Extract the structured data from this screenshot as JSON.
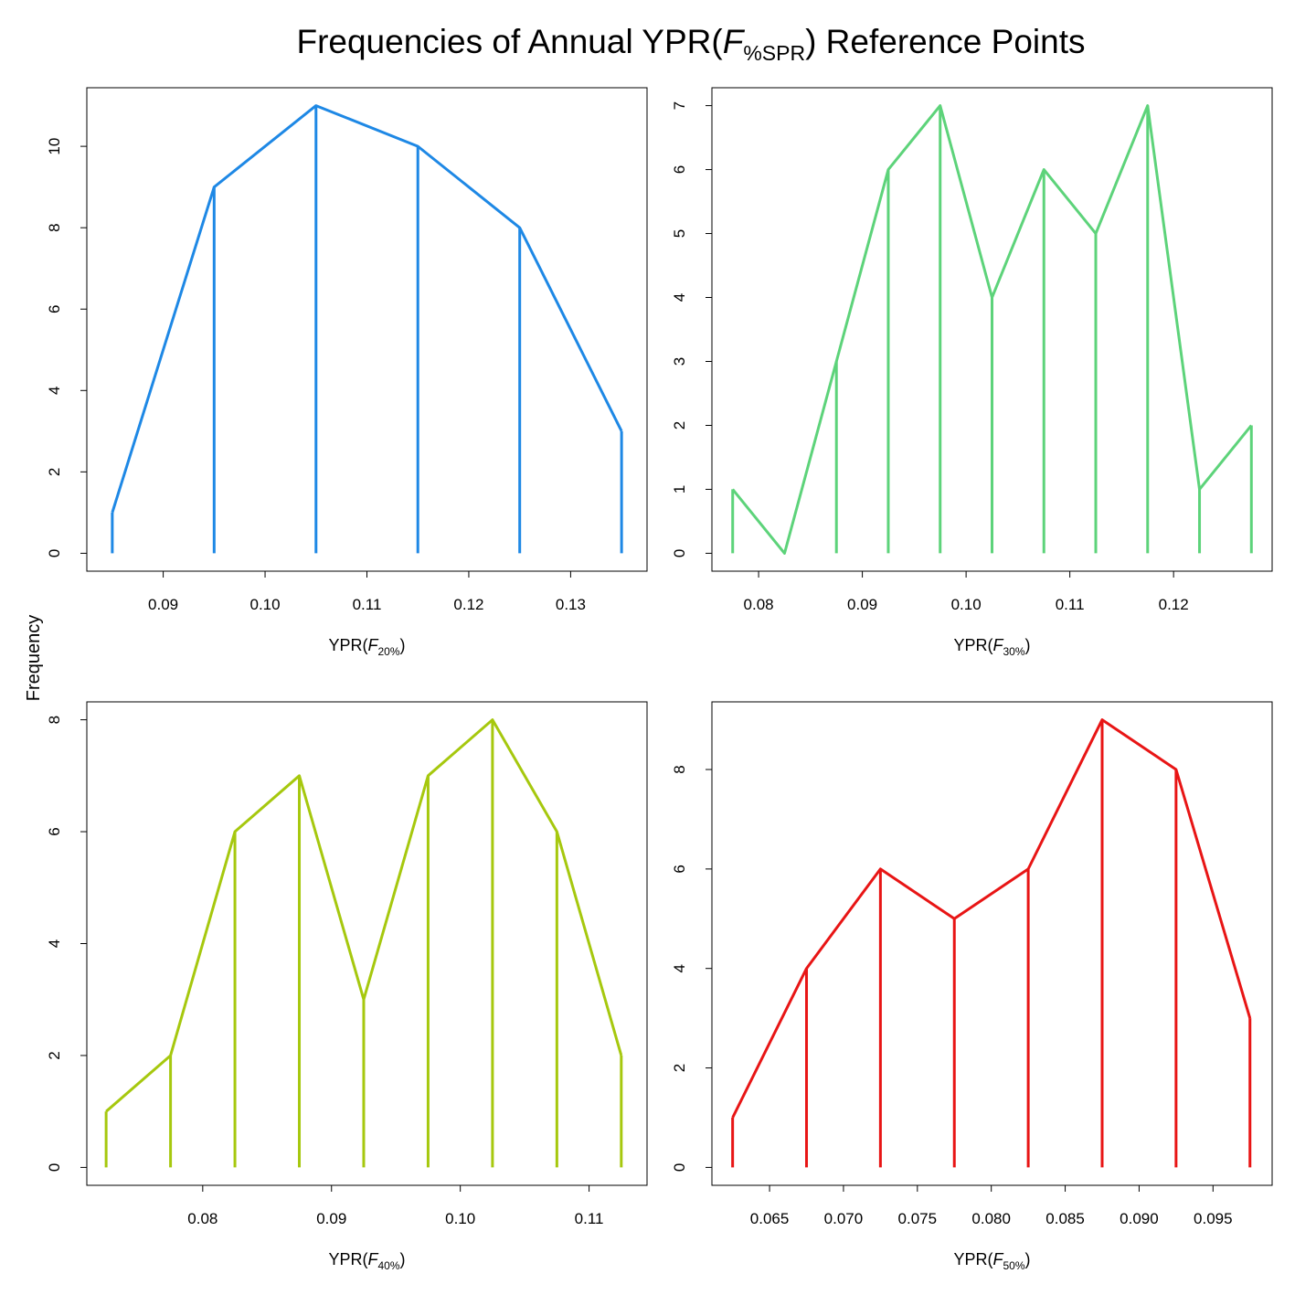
{
  "figure": {
    "title_prefix": "Frequencies of Annual YPR(",
    "title_italic": "F",
    "title_sub": "%SPR",
    "title_suffix": ") Reference Points",
    "ylabel": "Frequency"
  },
  "chart_data": [
    {
      "type": "line",
      "color": "#1E88E5",
      "xlabel_prefix": "YPR(",
      "xlabel_italic": "F",
      "xlabel_sub": "20%",
      "xlabel_suffix": ")",
      "xlim": [
        0.0825,
        0.1375
      ],
      "ylim": [
        -0.44,
        11.44
      ],
      "x_ticks": [
        0.09,
        0.1,
        0.11,
        0.12,
        0.13
      ],
      "x_tick_labels": [
        "0.09",
        "0.10",
        "0.11",
        "0.12",
        "0.13"
      ],
      "y_ticks": [
        0,
        2,
        4,
        6,
        8,
        10
      ],
      "y_tick_labels": [
        "0",
        "2",
        "4",
        "6",
        "8",
        "10"
      ],
      "x": [
        0.085,
        0.095,
        0.105,
        0.115,
        0.125,
        0.135
      ],
      "y": [
        1,
        9,
        11,
        10,
        8,
        3
      ]
    },
    {
      "type": "line",
      "color": "#5DD37A",
      "xlabel_prefix": "YPR(",
      "xlabel_italic": "F",
      "xlabel_sub": "30%",
      "xlabel_suffix": ")",
      "xlim": [
        0.0755,
        0.1295
      ],
      "ylim": [
        -0.28,
        7.28
      ],
      "x_ticks": [
        0.08,
        0.09,
        0.1,
        0.11,
        0.12
      ],
      "x_tick_labels": [
        "0.08",
        "0.09",
        "0.10",
        "0.11",
        "0.12"
      ],
      "y_ticks": [
        0,
        1,
        2,
        3,
        4,
        5,
        6,
        7
      ],
      "y_tick_labels": [
        "0",
        "1",
        "2",
        "3",
        "4",
        "5",
        "6",
        "7"
      ],
      "x": [
        0.0775,
        0.0825,
        0.0875,
        0.0925,
        0.0975,
        0.1025,
        0.1075,
        0.1125,
        0.1175,
        0.1225,
        0.1275
      ],
      "y": [
        1,
        0,
        3,
        6,
        7,
        4,
        6,
        5,
        7,
        1,
        2
      ]
    },
    {
      "type": "line",
      "color": "#A6C80E",
      "xlabel_prefix": "YPR(",
      "xlabel_italic": "F",
      "xlabel_sub": "40%",
      "xlabel_suffix": ")",
      "xlim": [
        0.071,
        0.1145
      ],
      "ylim": [
        -0.32,
        8.32
      ],
      "x_ticks": [
        0.08,
        0.09,
        0.1,
        0.11
      ],
      "x_tick_labels": [
        "0.08",
        "0.09",
        "0.10",
        "0.11"
      ],
      "y_ticks": [
        0,
        2,
        4,
        6,
        8
      ],
      "y_tick_labels": [
        "0",
        "2",
        "4",
        "6",
        "8"
      ],
      "x": [
        0.0725,
        0.0775,
        0.0825,
        0.0875,
        0.0925,
        0.0975,
        0.1025,
        0.1075,
        0.1125
      ],
      "y": [
        1,
        2,
        6,
        7,
        3,
        7,
        8,
        6,
        2
      ]
    },
    {
      "type": "line",
      "color": "#E81515",
      "xlabel_prefix": "YPR(",
      "xlabel_italic": "F",
      "xlabel_sub": "50%",
      "xlabel_suffix": ")",
      "xlim": [
        0.0611,
        0.099
      ],
      "ylim": [
        -0.36,
        9.36
      ],
      "x_ticks": [
        0.065,
        0.07,
        0.075,
        0.08,
        0.085,
        0.09,
        0.095
      ],
      "x_tick_labels": [
        "0.065",
        "0.070",
        "0.075",
        "0.080",
        "0.085",
        "0.090",
        "0.095"
      ],
      "y_ticks": [
        0,
        2,
        4,
        6,
        8
      ],
      "y_tick_labels": [
        "0",
        "2",
        "4",
        "6",
        "8"
      ],
      "x": [
        0.0625,
        0.0675,
        0.0725,
        0.0775,
        0.0825,
        0.0875,
        0.0925,
        0.0975
      ],
      "y": [
        1,
        4,
        6,
        5,
        6,
        9,
        8,
        3
      ]
    }
  ]
}
